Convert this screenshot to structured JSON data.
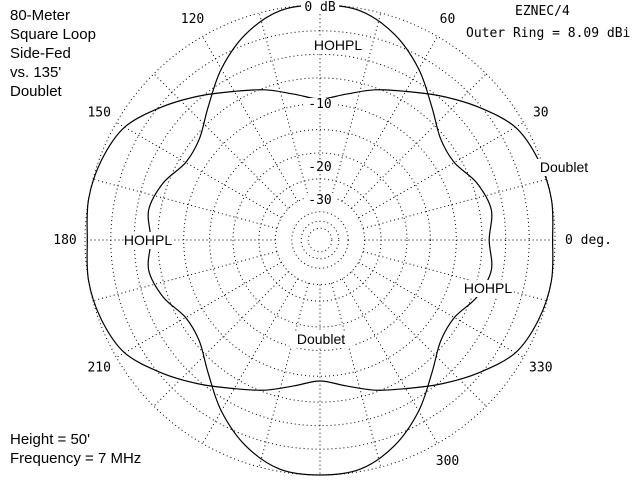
{
  "title_lines": [
    "80-Meter",
    "Square Loop",
    "Side-Fed",
    "vs. 135'",
    "Doublet"
  ],
  "footer_lines": [
    "Height = 50'",
    "Frequency = 7 MHz"
  ],
  "program": "EZNEC/4",
  "outer_ring": "Outer Ring = 8.09 dBi",
  "chart_data": {
    "type": "polar",
    "angle_labels": [
      {
        "deg": 0,
        "text": "0 deg."
      },
      {
        "deg": 30,
        "text": "30"
      },
      {
        "deg": 60,
        "text": "60"
      },
      {
        "deg": 120,
        "text": "120"
      },
      {
        "deg": 150,
        "text": "150"
      },
      {
        "deg": 180,
        "text": "180"
      },
      {
        "deg": 210,
        "text": "210"
      },
      {
        "deg": 300,
        "text": "300"
      },
      {
        "deg": 330,
        "text": "330"
      }
    ],
    "ring_labels": [
      "0 dB",
      "-10",
      "-20",
      "-30"
    ],
    "rings_fraction": [
      1.0,
      0.89,
      0.79,
      0.69,
      0.58,
      0.47,
      0.37,
      0.26,
      0.19,
      0.12,
      0.08,
      0.05
    ],
    "series": [
      {
        "name": "HOHPL",
        "angles_deg": [
          0,
          10,
          20,
          30,
          40,
          50,
          60,
          70,
          80,
          90,
          100,
          110,
          120,
          130,
          140,
          150,
          160,
          170,
          180,
          190,
          200,
          210,
          220,
          230,
          240,
          250,
          260,
          270,
          280,
          290,
          300,
          310,
          320,
          330,
          340,
          350
        ],
        "radius_fraction": [
          0.72,
          0.74,
          0.71,
          0.66,
          0.67,
          0.74,
          0.84,
          0.93,
          0.99,
          1.0,
          0.99,
          0.93,
          0.84,
          0.74,
          0.67,
          0.66,
          0.71,
          0.74,
          0.72,
          0.74,
          0.71,
          0.66,
          0.67,
          0.74,
          0.84,
          0.93,
          0.99,
          1.0,
          0.99,
          0.93,
          0.84,
          0.74,
          0.67,
          0.66,
          0.71,
          0.74
        ]
      },
      {
        "name": "Doublet",
        "angles_deg": [
          0,
          10,
          20,
          30,
          40,
          50,
          60,
          70,
          80,
          90,
          100,
          110,
          120,
          130,
          140,
          150,
          160,
          170,
          180,
          190,
          200,
          210,
          220,
          230,
          240,
          250,
          260,
          270,
          280,
          290,
          300,
          310,
          320,
          330,
          340,
          350
        ],
        "radius_fraction": [
          0.99,
          1.0,
          0.99,
          0.96,
          0.88,
          0.8,
          0.73,
          0.68,
          0.63,
          0.6,
          0.63,
          0.68,
          0.73,
          0.8,
          0.88,
          0.96,
          0.99,
          1.0,
          0.99,
          1.0,
          0.99,
          0.96,
          0.88,
          0.8,
          0.73,
          0.68,
          0.63,
          0.6,
          0.63,
          0.68,
          0.73,
          0.8,
          0.88,
          0.96,
          0.99,
          1.0
        ]
      }
    ],
    "curve_labels": [
      {
        "series": "HOHPL",
        "text": "HOHPL"
      },
      {
        "series": "HOHPL",
        "text": "HOHPL"
      },
      {
        "series": "HOHPL",
        "text": "HOHPL"
      },
      {
        "series": "Doublet",
        "text": "Doublet"
      },
      {
        "series": "Doublet",
        "text": "Doublet"
      }
    ]
  }
}
